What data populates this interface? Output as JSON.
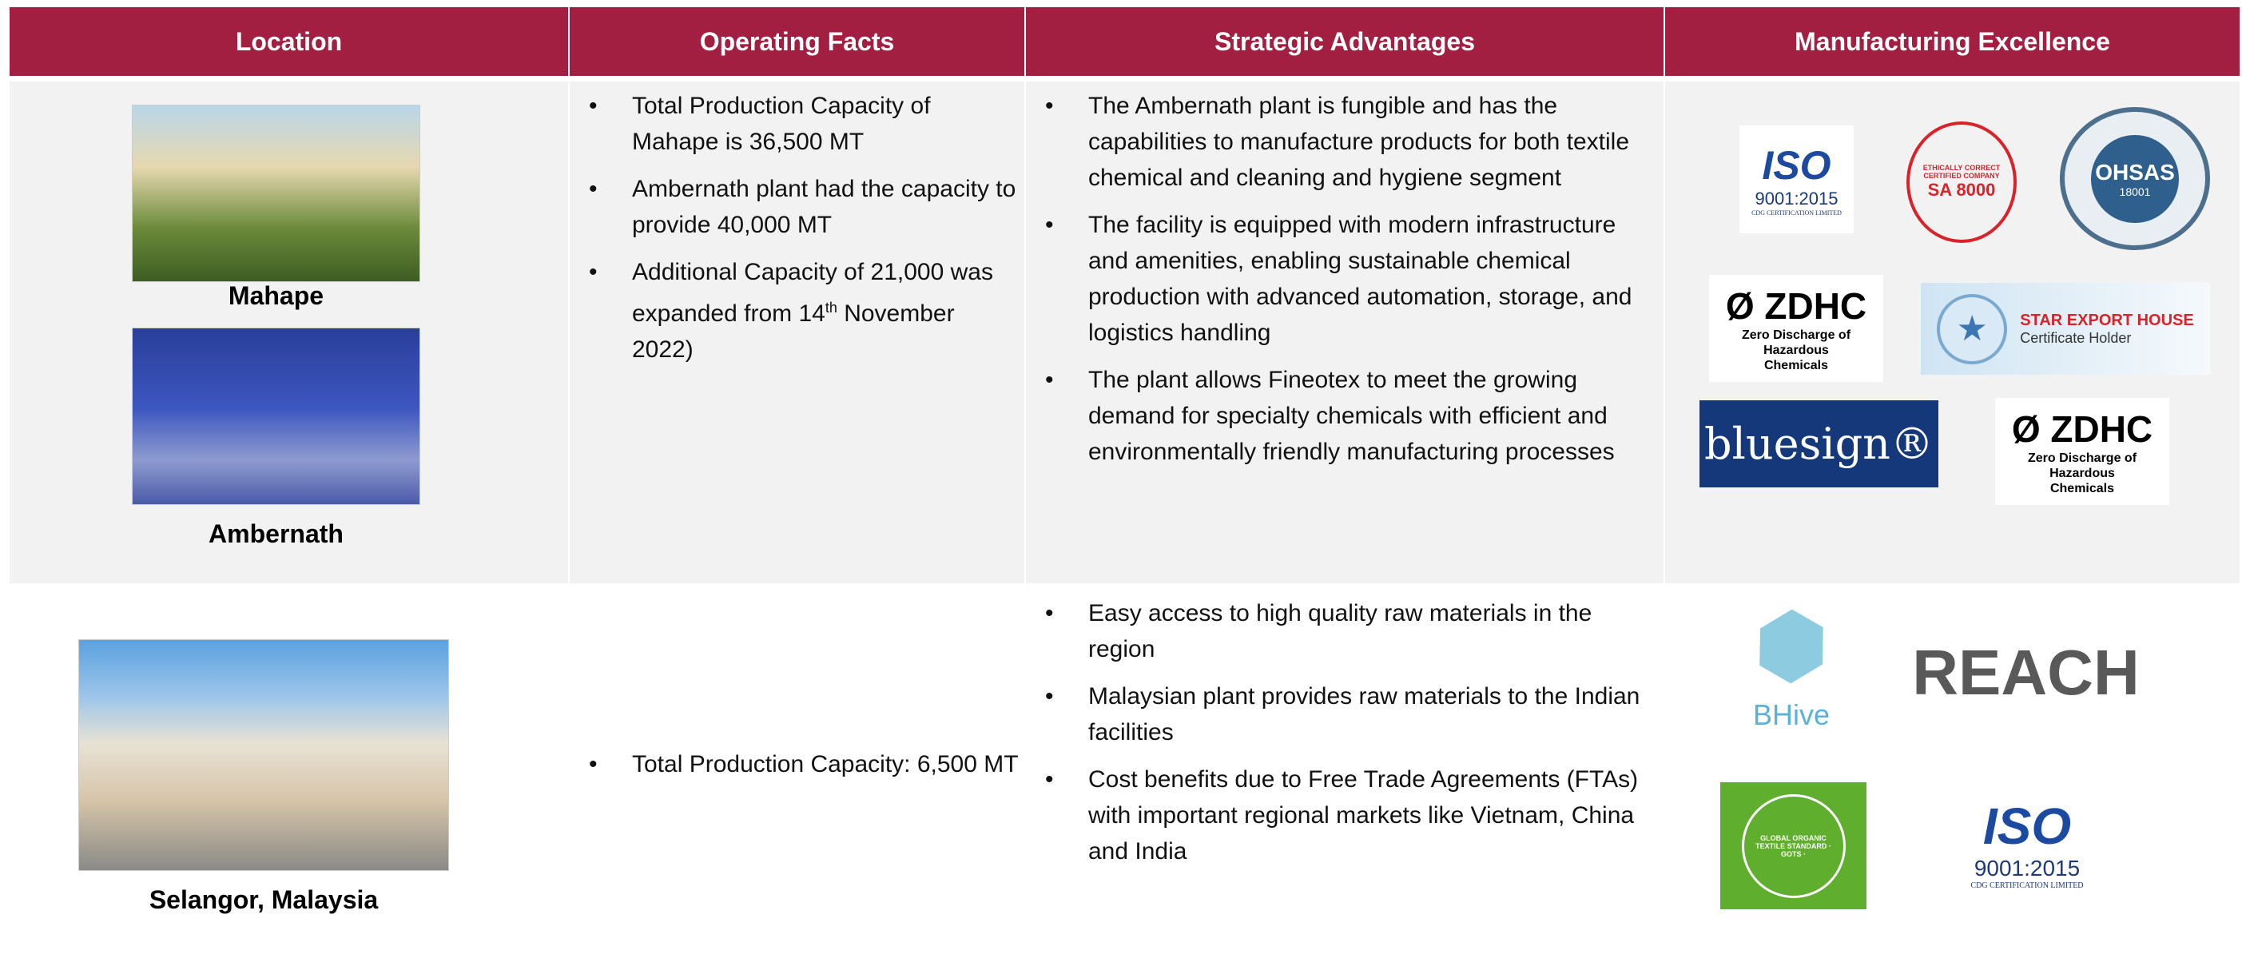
{
  "table": {
    "headers": [
      "Location",
      "Operating Facts",
      "Strategic Advantages",
      "Manufacturing Excellence"
    ],
    "rows": [
      {
        "locations": [
          "Mahape",
          "Ambernath"
        ],
        "operating_facts": [
          "Total Production Capacity of Mahape is  36,500 MT",
          "Ambernath plant had the capacity to provide 40,000 MT",
          {
            "text": "Additional Capacity of 21,000 was expanded from 14",
            "sup": "th",
            "tail": " November 2022)"
          }
        ],
        "strategic_advantages": [
          "The Ambernath plant is fungible and has the capabilities to manufacture products for both textile chemical and cleaning and hygiene segment",
          "The facility is equipped with modern infrastructure and amenities, enabling sustainable chemical production with advanced automation, storage, and logistics handling",
          "The plant allows Fineotex to meet the growing demand for specialty chemicals with efficient and environmentally friendly manufacturing processes"
        ],
        "logos": {
          "iso": [
            "ISO",
            "9001:2015",
            "CDG CERTIFICATION LIMITED"
          ],
          "sa8000": [
            "ETHICALLY CORRECT CERTIFIED COMPANY",
            "SA 8000"
          ],
          "ohsas": [
            "OHSAS",
            "18001"
          ],
          "zdhc": [
            "Ø ZDHC",
            "Zero Discharge of Hazardous Chemicals"
          ],
          "star_export": [
            "STAR EXPORT HOUSE",
            "Certificate Holder"
          ],
          "bluesign": "bluesign®",
          "zdhc_2": [
            "Ø ZDHC",
            "Zero Discharge of Hazardous Chemicals"
          ]
        }
      },
      {
        "locations": [
          "Selangor, Malaysia"
        ],
        "operating_facts": [
          "Total Production Capacity: 6,500 MT"
        ],
        "strategic_advantages": [
          "Easy access to high quality raw materials in the region",
          "Malaysian plant provides raw materials to the Indian facilities",
          "Cost benefits due to Free Trade Agreements (FTAs) with important regional markets like Vietnam, China and India"
        ],
        "logos": {
          "bhive": "BHive",
          "reach": "REACH",
          "gots": "GLOBAL ORGANIC TEXTILE STANDARD · GOTS ·",
          "iso": [
            "ISO",
            "9001:2015",
            "CDG CERTIFICATION LIMITED"
          ]
        }
      }
    ]
  }
}
